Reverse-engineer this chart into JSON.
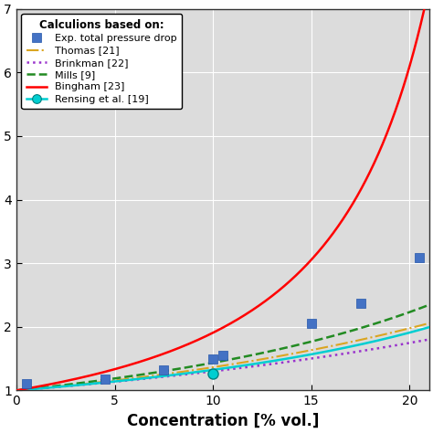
{
  "title": "",
  "xlabel": "Concentration [% vol.]",
  "ylabel": "",
  "xlim": [
    0,
    21
  ],
  "ylim": [
    1.0,
    7.0
  ],
  "yticks": [
    1,
    2,
    3,
    4,
    5,
    6,
    7
  ],
  "xticks": [
    0,
    5,
    10,
    15,
    20
  ],
  "exp_x": [
    0.5,
    4.5,
    7.5,
    10.0,
    10.5,
    15.0,
    17.5,
    20.5
  ],
  "exp_y": [
    1.11,
    1.18,
    1.32,
    1.5,
    1.55,
    2.06,
    2.37,
    3.09
  ],
  "exp_color": "#4472C4",
  "thomas_color": "#DAA520",
  "brinkman_color": "#9932CC",
  "mills_color": "#228B22",
  "bingham_color": "#FF0000",
  "rensing_color": "#00CED1",
  "legend_title": "Calculions based on:",
  "background_color": "#dcdcdc",
  "grid_color": "#ffffff"
}
